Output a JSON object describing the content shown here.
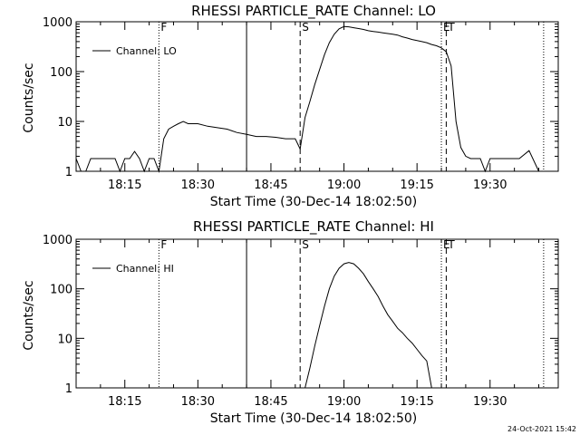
{
  "footer": {
    "timestamp": "24-Oct-2021 15:42"
  },
  "chart_data": [
    {
      "type": "line",
      "title": "RHESSI PARTICLE_RATE Channel: LO",
      "xlabel": "Start Time (30-Dec-14 18:02:50)",
      "ylabel": "Counts/sec",
      "yscale": "log",
      "ylim": [
        1,
        1000
      ],
      "xlim": [
        "18:05",
        "19:44"
      ],
      "x_tick_labels": [
        "18:15",
        "18:30",
        "18:45",
        "19:00",
        "19:15",
        "19:30"
      ],
      "y_tick_labels": [
        "1",
        "10",
        "100",
        "1000"
      ],
      "grid": false,
      "legend": {
        "position": "top-left",
        "entries": [
          "Channel: LO"
        ]
      },
      "markers": [
        {
          "time": "18:22",
          "style": "dotted",
          "label": "F"
        },
        {
          "time": "18:40",
          "style": "solid",
          "label": ""
        },
        {
          "time": "18:51",
          "style": "dashed",
          "label": "S"
        },
        {
          "time": "19:20",
          "style": "dotted",
          "label": "E"
        },
        {
          "time": "19:21",
          "style": "dashed",
          "label": "T"
        },
        {
          "time": "19:41",
          "style": "dotted",
          "label": ""
        }
      ],
      "series": [
        {
          "name": "Channel: LO",
          "x": [
            "18:05",
            "18:06",
            "18:07",
            "18:08",
            "18:09",
            "18:10",
            "18:11",
            "18:12",
            "18:13",
            "18:14",
            "18:15",
            "18:16",
            "18:17",
            "18:18",
            "18:19",
            "18:20",
            "18:21",
            "18:22",
            "18:23",
            "18:24",
            "18:25",
            "18:26",
            "18:27",
            "18:28",
            "18:30",
            "18:32",
            "18:34",
            "18:36",
            "18:38",
            "18:40",
            "18:42",
            "18:44",
            "18:46",
            "18:48",
            "18:50",
            "18:51",
            "18:52",
            "18:53",
            "18:54",
            "18:55",
            "18:56",
            "18:57",
            "18:58",
            "18:59",
            "19:00",
            "19:01",
            "19:02",
            "19:03",
            "19:04",
            "19:05",
            "19:06",
            "19:07",
            "19:08",
            "19:09",
            "19:10",
            "19:11",
            "19:12",
            "19:13",
            "19:14",
            "19:15",
            "19:16",
            "19:17",
            "19:18",
            "19:19",
            "19:20",
            "19:21",
            "19:22",
            "19:23",
            "19:24",
            "19:25",
            "19:26",
            "19:27",
            "19:28",
            "19:29",
            "19:30",
            "19:32",
            "19:34",
            "19:36",
            "19:38",
            "19:40"
          ],
          "y": [
            1.8,
            1,
            1,
            1.8,
            1.8,
            1.8,
            1.8,
            1.8,
            1.8,
            1,
            1.8,
            1.8,
            2.5,
            1.8,
            1,
            1.8,
            1.8,
            1,
            4.5,
            7,
            8,
            9,
            10,
            9,
            9,
            8,
            7.5,
            7,
            6,
            5.5,
            5,
            5,
            4.8,
            4.5,
            4.5,
            2.8,
            12,
            25,
            55,
            110,
            220,
            380,
            560,
            720,
            800,
            790,
            760,
            730,
            700,
            660,
            640,
            620,
            600,
            580,
            560,
            540,
            500,
            470,
            440,
            420,
            400,
            380,
            350,
            330,
            300,
            250,
            130,
            10,
            3,
            2,
            1.8,
            1.8,
            1.8,
            1,
            1.8,
            1.8,
            1.8,
            1.8,
            2.6,
            1
          ]
        }
      ]
    },
    {
      "type": "line",
      "title": "RHESSI PARTICLE_RATE Channel: HI",
      "xlabel": "Start Time (30-Dec-14 18:02:50)",
      "ylabel": "Counts/sec",
      "yscale": "log",
      "ylim": [
        1,
        1000
      ],
      "xlim": [
        "18:05",
        "19:44"
      ],
      "x_tick_labels": [
        "18:15",
        "18:30",
        "18:45",
        "19:00",
        "19:15",
        "19:30"
      ],
      "y_tick_labels": [
        "1",
        "10",
        "100",
        "1000"
      ],
      "grid": false,
      "legend": {
        "position": "top-left",
        "entries": [
          "Channel: HI"
        ]
      },
      "markers": [
        {
          "time": "18:22",
          "style": "dotted",
          "label": "F"
        },
        {
          "time": "18:40",
          "style": "solid",
          "label": ""
        },
        {
          "time": "18:51",
          "style": "dashed",
          "label": "S"
        },
        {
          "time": "19:20",
          "style": "dotted",
          "label": "E"
        },
        {
          "time": "19:21",
          "style": "dashed",
          "label": "T"
        },
        {
          "time": "19:41",
          "style": "dotted",
          "label": ""
        }
      ],
      "series": [
        {
          "name": "Channel: HI",
          "x": [
            "18:52",
            "18:53",
            "18:54",
            "18:55",
            "18:56",
            "18:57",
            "18:58",
            "18:59",
            "19:00",
            "19:01",
            "19:02",
            "19:03",
            "19:04",
            "19:05",
            "19:06",
            "19:07",
            "19:08",
            "19:09",
            "19:10",
            "19:11",
            "19:12",
            "19:13",
            "19:14",
            "19:15",
            "19:16",
            "19:17",
            "19:18"
          ],
          "y": [
            1,
            2.5,
            7,
            18,
            45,
            100,
            180,
            260,
            320,
            340,
            320,
            260,
            200,
            140,
            100,
            70,
            45,
            30,
            22,
            16,
            13,
            10,
            8,
            6,
            4.5,
            3.5,
            1
          ]
        }
      ]
    }
  ]
}
